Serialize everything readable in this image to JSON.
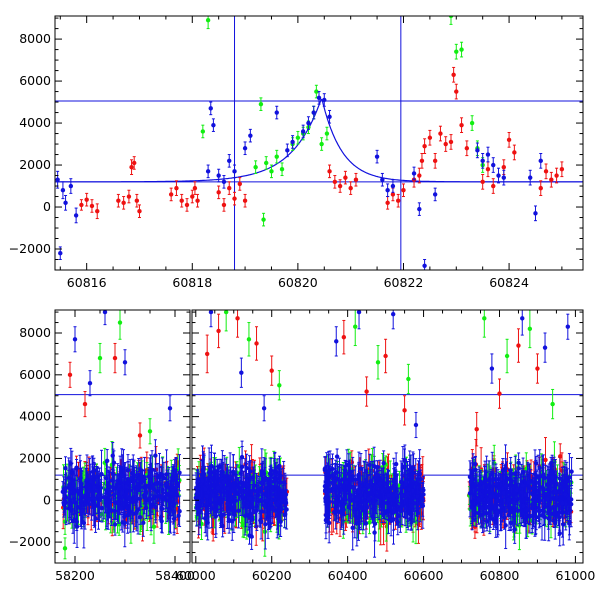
{
  "colors": {
    "red": "#ee1111",
    "green": "#11ee11",
    "blue": "#1111dd",
    "frame": "#000000"
  },
  "chart_data": [
    {
      "type": "scatter",
      "title": "",
      "xlabel": "",
      "ylabel": "",
      "xlim": [
        60815.4,
        60825.4
      ],
      "ylim": [
        -3000,
        9100
      ],
      "xticks": [
        60816,
        60818,
        60820,
        60822,
        60824
      ],
      "xtick_labels": [
        "60816",
        "60818",
        "60820",
        "60822",
        "60824"
      ],
      "yticks": [
        -2000,
        0,
        2000,
        4000,
        6000,
        8000
      ],
      "ytick_labels": [
        "−2000",
        "0",
        "2000",
        "4000",
        "6000",
        "8000"
      ],
      "hlines": [
        1200,
        5050
      ],
      "vlines": [
        60818.8,
        60821.95
      ],
      "model_curve": {
        "t0": 60820.45,
        "peak": 5200,
        "base": 1200,
        "rise_tau": 0.55,
        "decay_tau": 0.38
      },
      "series": [
        {
          "color": "red",
          "points": [
            [
              60815.9,
              100,
              250
            ],
            [
              60816.0,
              350,
              300
            ],
            [
              60816.1,
              50,
              300
            ],
            [
              60816.2,
              -200,
              350
            ],
            [
              60816.6,
              300,
              300
            ],
            [
              60816.7,
              200,
              300
            ],
            [
              60816.8,
              500,
              300
            ],
            [
              60816.85,
              1900,
              350
            ],
            [
              60816.9,
              2100,
              300
            ],
            [
              60816.95,
              300,
              300
            ],
            [
              60817.0,
              -200,
              300
            ],
            [
              60817.6,
              600,
              300
            ],
            [
              60817.7,
              900,
              350
            ],
            [
              60817.8,
              300,
              300
            ],
            [
              60817.9,
              100,
              300
            ],
            [
              60818.0,
              500,
              300
            ],
            [
              60818.05,
              900,
              300
            ],
            [
              60818.1,
              300,
              300
            ],
            [
              60818.5,
              700,
              300
            ],
            [
              60818.6,
              100,
              300
            ],
            [
              60818.7,
              900,
              300
            ],
            [
              60818.8,
              400,
              300
            ],
            [
              60818.9,
              1100,
              300
            ],
            [
              60819.0,
              300,
              300
            ],
            [
              60820.6,
              1700,
              300
            ],
            [
              60820.7,
              1200,
              300
            ],
            [
              60820.8,
              1000,
              300
            ],
            [
              60820.9,
              1400,
              300
            ],
            [
              60821.0,
              900,
              300
            ],
            [
              60821.1,
              1300,
              300
            ],
            [
              60821.7,
              200,
              300
            ],
            [
              60821.8,
              600,
              300
            ],
            [
              60821.9,
              300,
              300
            ],
            [
              60822.0,
              800,
              300
            ],
            [
              60822.2,
              1300,
              350
            ],
            [
              60822.3,
              1500,
              350
            ],
            [
              60822.35,
              2200,
              350
            ],
            [
              60822.4,
              2900,
              350
            ],
            [
              60822.5,
              3300,
              350
            ],
            [
              60822.6,
              2200,
              350
            ],
            [
              60822.7,
              3500,
              350
            ],
            [
              60822.8,
              3000,
              350
            ],
            [
              60822.9,
              3100,
              350
            ],
            [
              60822.95,
              6300,
              350
            ],
            [
              60823.0,
              5500,
              350
            ],
            [
              60823.1,
              3900,
              350
            ],
            [
              60823.2,
              2800,
              350
            ],
            [
              60823.5,
              1200,
              350
            ],
            [
              60823.6,
              1800,
              350
            ],
            [
              60823.7,
              1000,
              350
            ],
            [
              60823.9,
              1900,
              350
            ],
            [
              60824.0,
              3200,
              350
            ],
            [
              60824.1,
              2600,
              350
            ],
            [
              60824.6,
              900,
              350
            ],
            [
              60824.7,
              1700,
              350
            ],
            [
              60824.8,
              1300,
              350
            ],
            [
              60824.9,
              1500,
              350
            ],
            [
              60825.0,
              1800,
              350
            ]
          ]
        },
        {
          "color": "green",
          "points": [
            [
              60818.2,
              3600,
              300
            ],
            [
              60818.3,
              8900,
              400
            ],
            [
              60819.2,
              1900,
              300
            ],
            [
              60819.3,
              4900,
              300
            ],
            [
              60819.35,
              -600,
              300
            ],
            [
              60819.4,
              2100,
              300
            ],
            [
              60819.5,
              1700,
              300
            ],
            [
              60819.6,
              2400,
              300
            ],
            [
              60819.7,
              1800,
              300
            ],
            [
              60819.9,
              3000,
              300
            ],
            [
              60820.0,
              3300,
              300
            ],
            [
              60820.1,
              3500,
              300
            ],
            [
              60820.2,
              3800,
              300
            ],
            [
              60820.3,
              4500,
              300
            ],
            [
              60820.35,
              5500,
              300
            ],
            [
              60820.45,
              3000,
              300
            ],
            [
              60820.55,
              3500,
              300
            ],
            [
              60822.9,
              9100,
              400
            ],
            [
              60823.0,
              7400,
              350
            ],
            [
              60823.1,
              7500,
              350
            ],
            [
              60823.3,
              4000,
              350
            ],
            [
              60823.4,
              2800,
              350
            ],
            [
              60823.5,
              2000,
              350
            ]
          ]
        },
        {
          "color": "blue",
          "points": [
            [
              60815.45,
              1300,
              400
            ],
            [
              60815.5,
              -2200,
              300
            ],
            [
              60815.55,
              800,
              400
            ],
            [
              60815.6,
              200,
              350
            ],
            [
              60815.7,
              1000,
              350
            ],
            [
              60815.8,
              -400,
              350
            ],
            [
              60818.3,
              1700,
              300
            ],
            [
              60818.35,
              4700,
              300
            ],
            [
              60818.4,
              3900,
              300
            ],
            [
              60818.5,
              1500,
              300
            ],
            [
              60818.6,
              1200,
              300
            ],
            [
              60818.7,
              2200,
              300
            ],
            [
              60818.8,
              1700,
              300
            ],
            [
              60819.0,
              2800,
              300
            ],
            [
              60819.1,
              3400,
              300
            ],
            [
              60819.6,
              4500,
              300
            ],
            [
              60819.8,
              2700,
              300
            ],
            [
              60819.9,
              3100,
              300
            ],
            [
              60820.1,
              3600,
              300
            ],
            [
              60820.2,
              4000,
              300
            ],
            [
              60820.3,
              4500,
              300
            ],
            [
              60820.4,
              5200,
              300
            ],
            [
              60820.5,
              5100,
              300
            ],
            [
              60820.6,
              4300,
              300
            ],
            [
              60821.5,
              2400,
              300
            ],
            [
              60821.6,
              1300,
              300
            ],
            [
              60821.7,
              800,
              300
            ],
            [
              60821.8,
              1000,
              300
            ],
            [
              60822.2,
              1600,
              300
            ],
            [
              60822.3,
              -100,
              300
            ],
            [
              60822.4,
              -2800,
              300
            ],
            [
              60822.6,
              600,
              300
            ],
            [
              60823.4,
              2700,
              350
            ],
            [
              60823.5,
              2200,
              350
            ],
            [
              60823.6,
              2500,
              350
            ],
            [
              60823.7,
              2000,
              350
            ],
            [
              60823.8,
              1500,
              350
            ],
            [
              60823.9,
              1400,
              350
            ],
            [
              60824.4,
              1400,
              350
            ],
            [
              60824.5,
              -300,
              350
            ],
            [
              60824.6,
              2200,
              350
            ]
          ]
        }
      ]
    },
    {
      "type": "scatter",
      "title": "",
      "xlabel": "",
      "ylabel": "",
      "ylim": [
        -3000,
        9100
      ],
      "yticks": [
        -2000,
        0,
        2000,
        4000,
        6000,
        8000
      ],
      "ytick_labels": [
        "−2000",
        "0",
        "2000",
        "4000",
        "6000",
        "8000"
      ],
      "hlines": [
        1200,
        5050
      ],
      "hlines_note": "",
      "segments": [
        {
          "xlim": [
            58160,
            58430
          ],
          "xticks": [
            58200,
            58400
          ],
          "xtick_labels": [
            "58200",
            "58400"
          ],
          "data_range": [
            58175,
            58410
          ]
        },
        {
          "xlim": [
            59990,
            61020
          ],
          "xticks": [
            60000,
            60200,
            60400,
            60600,
            60800,
            61000
          ],
          "xtick_labels": [
            "60000",
            "60200",
            "60400",
            "60600",
            "60800",
            "61000"
          ],
          "data_ranges": [
            [
              60000,
              60240
            ],
            [
              60340,
              60600
            ],
            [
              60720,
              60990
            ]
          ]
        }
      ],
      "series": [
        {
          "color": "red",
          "points": [
            [
              58190,
              6000,
              600
            ],
            [
              58220,
              4600,
              600
            ],
            [
              58280,
              6800,
              700
            ],
            [
              58330,
              3100,
              600
            ],
            [
              60030,
              7000,
              900
            ],
            [
              60060,
              8100,
              800
            ],
            [
              60110,
              8700,
              900
            ],
            [
              60160,
              7500,
              800
            ],
            [
              60200,
              6200,
              700
            ],
            [
              60390,
              7800,
              800
            ],
            [
              60450,
              5200,
              700
            ],
            [
              60500,
              6900,
              800
            ],
            [
              60550,
              4300,
              700
            ],
            [
              60740,
              3400,
              800
            ],
            [
              60800,
              5100,
              700
            ],
            [
              60850,
              7400,
              800
            ],
            [
              60900,
              6300,
              700
            ],
            [
              60960,
              2100,
              600
            ]
          ]
        },
        {
          "color": "green",
          "points": [
            [
              58180,
              -2300,
              500
            ],
            [
              58250,
              6800,
              700
            ],
            [
              58290,
              8500,
              800
            ],
            [
              58350,
              3300,
              600
            ],
            [
              60080,
              9000,
              900
            ],
            [
              60140,
              7700,
              800
            ],
            [
              60220,
              5500,
              700
            ],
            [
              60420,
              8300,
              900
            ],
            [
              60480,
              6600,
              800
            ],
            [
              60560,
              5800,
              700
            ],
            [
              60760,
              8700,
              900
            ],
            [
              60820,
              6900,
              800
            ],
            [
              60880,
              8200,
              900
            ],
            [
              60940,
              4600,
              700
            ]
          ]
        },
        {
          "color": "blue",
          "points": [
            [
              58200,
              7700,
              600
            ],
            [
              58230,
              5600,
              600
            ],
            [
              58260,
              9000,
              600
            ],
            [
              58300,
              6600,
              600
            ],
            [
              58390,
              4400,
              600
            ],
            [
              60040,
              9000,
              700
            ],
            [
              60120,
              6100,
              700
            ],
            [
              60180,
              4400,
              600
            ],
            [
              60370,
              7600,
              700
            ],
            [
              60430,
              9000,
              800
            ],
            [
              60520,
              8900,
              700
            ],
            [
              60580,
              3600,
              600
            ],
            [
              60780,
              6300,
              700
            ],
            [
              60860,
              8700,
              800
            ],
            [
              60920,
              7300,
              700
            ],
            [
              60980,
              8300,
              600
            ]
          ]
        }
      ]
    }
  ]
}
